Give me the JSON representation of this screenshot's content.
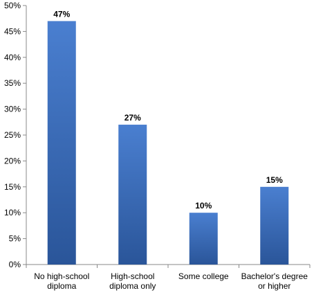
{
  "chart_data": {
    "type": "bar",
    "categories": [
      [
        "No high-school",
        "diploma"
      ],
      [
        "High-school",
        "diploma only"
      ],
      [
        "Some college"
      ],
      [
        "Bachelor's degree",
        "or higher"
      ]
    ],
    "values": [
      47,
      27,
      10,
      15
    ],
    "value_labels": [
      "47%",
      "27%",
      "10%",
      "15%"
    ],
    "title": "",
    "xlabel": "",
    "ylabel": "",
    "ylim": [
      0,
      50
    ],
    "y_ticks": [
      0,
      5,
      10,
      15,
      20,
      25,
      30,
      35,
      40,
      45,
      50
    ],
    "y_tick_labels": [
      "0%",
      "5%",
      "10%",
      "15%",
      "20%",
      "25%",
      "30%",
      "35%",
      "40%",
      "45%",
      "50%"
    ],
    "grid": false,
    "legend": "none",
    "colors": {
      "bar_top": "#4A7FD0",
      "bar_bottom": "#2A5599",
      "axis": "#888888"
    }
  }
}
